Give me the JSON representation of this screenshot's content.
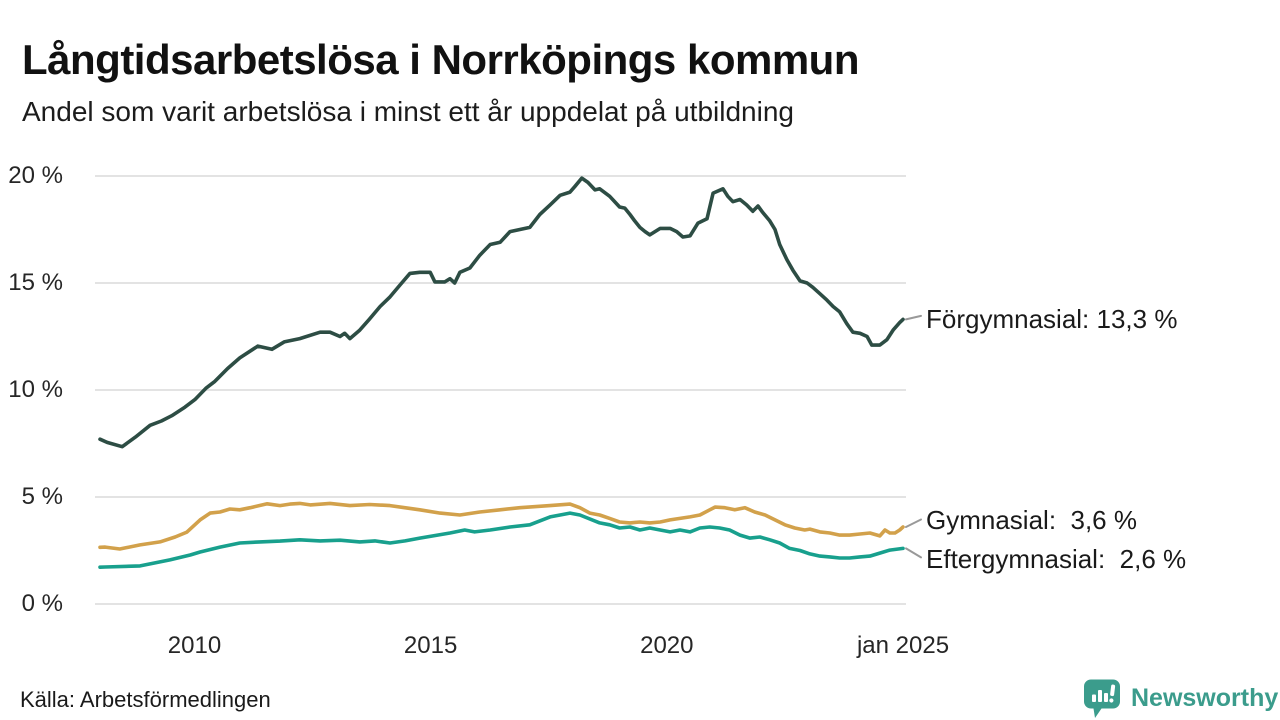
{
  "header": {
    "title": "Långtidsarbetslösa i Norrköpings kommun",
    "subtitle": "Andel som varit arbetslösa i minst ett år uppdelat på utbildning"
  },
  "footer": {
    "source": "Källa: Arbetsförmedlingen",
    "brand": "Newsworthy"
  },
  "colors": {
    "forgymnasial": "#2d4d44",
    "gymnasial": "#d2a14b",
    "eftergymnasial": "#18a08d",
    "grid": "#e3e3e3",
    "connector": "#999999",
    "brand_teal": "#3b9c8c",
    "text": "#1a1a1a"
  },
  "chart_data": {
    "type": "line",
    "title": "Långtidsarbetslösa i Norrköpings kommun",
    "subtitle": "Andel som varit arbetslösa i minst ett år uppdelat på utbildning",
    "xlabel": "",
    "ylabel": "",
    "unit": "%",
    "grid": true,
    "legend_position": "end-labels-right",
    "xlim": [
      2008,
      2025
    ],
    "ylim": [
      0,
      20
    ],
    "y_ticks": [
      {
        "value": 0,
        "label": "0 %"
      },
      {
        "value": 5,
        "label": "5 %"
      },
      {
        "value": 10,
        "label": "10 %"
      },
      {
        "value": 15,
        "label": "15 %"
      },
      {
        "value": 20,
        "label": "20 %"
      }
    ],
    "x_ticks": [
      {
        "value": 2010,
        "label": "2010"
      },
      {
        "value": 2015,
        "label": "2015"
      },
      {
        "value": 2020,
        "label": "2020"
      },
      {
        "value": 2025,
        "label": "jan 2025"
      }
    ],
    "series": [
      {
        "name": "Förgymnasial",
        "color_key": "forgymnasial",
        "end_value": "13,3 %",
        "end_label": "Förgymnasial: 13,3 %",
        "points": [
          [
            2008.0,
            7.7
          ],
          [
            2008.15,
            7.55
          ],
          [
            2008.47,
            7.35
          ],
          [
            2008.75,
            7.8
          ],
          [
            2009.06,
            8.35
          ],
          [
            2009.3,
            8.55
          ],
          [
            2009.52,
            8.8
          ],
          [
            2009.8,
            9.2
          ],
          [
            2010.01,
            9.55
          ],
          [
            2010.25,
            10.1
          ],
          [
            2010.43,
            10.4
          ],
          [
            2010.7,
            11.0
          ],
          [
            2010.96,
            11.5
          ],
          [
            2011.34,
            12.05
          ],
          [
            2011.64,
            11.9
          ],
          [
            2011.9,
            12.25
          ],
          [
            2012.23,
            12.4
          ],
          [
            2012.66,
            12.7
          ],
          [
            2012.87,
            12.7
          ],
          [
            2013.08,
            12.5
          ],
          [
            2013.18,
            12.65
          ],
          [
            2013.29,
            12.4
          ],
          [
            2013.5,
            12.8
          ],
          [
            2013.7,
            13.3
          ],
          [
            2013.93,
            13.9
          ],
          [
            2014.14,
            14.35
          ],
          [
            2014.35,
            14.9
          ],
          [
            2014.56,
            15.45
          ],
          [
            2014.77,
            15.5
          ],
          [
            2014.99,
            15.5
          ],
          [
            2015.09,
            15.05
          ],
          [
            2015.3,
            15.05
          ],
          [
            2015.41,
            15.2
          ],
          [
            2015.51,
            15.0
          ],
          [
            2015.62,
            15.5
          ],
          [
            2015.83,
            15.7
          ],
          [
            2016.04,
            16.3
          ],
          [
            2016.26,
            16.8
          ],
          [
            2016.47,
            16.9
          ],
          [
            2016.68,
            17.4
          ],
          [
            2016.89,
            17.5
          ],
          [
            2017.1,
            17.6
          ],
          [
            2017.31,
            18.2
          ],
          [
            2017.53,
            18.65
          ],
          [
            2017.74,
            19.1
          ],
          [
            2017.95,
            19.25
          ],
          [
            2018.05,
            19.5
          ],
          [
            2018.2,
            19.9
          ],
          [
            2018.33,
            19.7
          ],
          [
            2018.48,
            19.35
          ],
          [
            2018.58,
            19.4
          ],
          [
            2018.79,
            19.05
          ],
          [
            2019.0,
            18.55
          ],
          [
            2019.11,
            18.5
          ],
          [
            2019.22,
            18.2
          ],
          [
            2019.32,
            17.9
          ],
          [
            2019.43,
            17.6
          ],
          [
            2019.54,
            17.4
          ],
          [
            2019.64,
            17.25
          ],
          [
            2019.75,
            17.4
          ],
          [
            2019.86,
            17.55
          ],
          [
            2020.07,
            17.55
          ],
          [
            2020.21,
            17.4
          ],
          [
            2020.34,
            17.15
          ],
          [
            2020.49,
            17.2
          ],
          [
            2020.66,
            17.8
          ],
          [
            2020.85,
            18.0
          ],
          [
            2020.98,
            19.2
          ],
          [
            2021.19,
            19.4
          ],
          [
            2021.29,
            19.05
          ],
          [
            2021.4,
            18.8
          ],
          [
            2021.55,
            18.9
          ],
          [
            2021.69,
            18.65
          ],
          [
            2021.82,
            18.35
          ],
          [
            2021.93,
            18.6
          ],
          [
            2022.03,
            18.3
          ],
          [
            2022.18,
            17.9
          ],
          [
            2022.29,
            17.5
          ],
          [
            2022.39,
            16.8
          ],
          [
            2022.54,
            16.1
          ],
          [
            2022.67,
            15.6
          ],
          [
            2022.82,
            15.1
          ],
          [
            2022.97,
            15.0
          ],
          [
            2023.09,
            14.8
          ],
          [
            2023.24,
            14.5
          ],
          [
            2023.39,
            14.2
          ],
          [
            2023.52,
            13.9
          ],
          [
            2023.66,
            13.65
          ],
          [
            2023.81,
            13.1
          ],
          [
            2023.94,
            12.7
          ],
          [
            2024.09,
            12.65
          ],
          [
            2024.24,
            12.5
          ],
          [
            2024.34,
            12.1
          ],
          [
            2024.51,
            12.1
          ],
          [
            2024.66,
            12.35
          ],
          [
            2024.79,
            12.8
          ],
          [
            2024.93,
            13.15
          ],
          [
            2025.0,
            13.3
          ]
        ]
      },
      {
        "name": "Gymnasial",
        "color_key": "gymnasial",
        "end_value": "3,6 %",
        "end_label": "Gymnasial:  3,6 %",
        "points": [
          [
            2008.0,
            2.65
          ],
          [
            2008.11,
            2.66
          ],
          [
            2008.42,
            2.57
          ],
          [
            2008.85,
            2.76
          ],
          [
            2009.27,
            2.9
          ],
          [
            2009.59,
            3.13
          ],
          [
            2009.84,
            3.36
          ],
          [
            2010.12,
            3.93
          ],
          [
            2010.33,
            4.25
          ],
          [
            2010.54,
            4.3
          ],
          [
            2010.75,
            4.44
          ],
          [
            2010.96,
            4.4
          ],
          [
            2011.18,
            4.5
          ],
          [
            2011.54,
            4.68
          ],
          [
            2011.81,
            4.6
          ],
          [
            2012.02,
            4.67
          ],
          [
            2012.23,
            4.7
          ],
          [
            2012.45,
            4.63
          ],
          [
            2012.87,
            4.7
          ],
          [
            2013.29,
            4.6
          ],
          [
            2013.71,
            4.65
          ],
          [
            2014.14,
            4.6
          ],
          [
            2014.45,
            4.5
          ],
          [
            2014.77,
            4.4
          ],
          [
            2015.2,
            4.25
          ],
          [
            2015.62,
            4.16
          ],
          [
            2016.04,
            4.3
          ],
          [
            2016.47,
            4.4
          ],
          [
            2016.89,
            4.5
          ],
          [
            2017.53,
            4.6
          ],
          [
            2017.95,
            4.67
          ],
          [
            2018.16,
            4.5
          ],
          [
            2018.37,
            4.25
          ],
          [
            2018.58,
            4.16
          ],
          [
            2018.79,
            4.0
          ],
          [
            2019.0,
            3.83
          ],
          [
            2019.22,
            3.79
          ],
          [
            2019.43,
            3.83
          ],
          [
            2019.64,
            3.79
          ],
          [
            2019.86,
            3.83
          ],
          [
            2020.07,
            3.93
          ],
          [
            2020.28,
            4.0
          ],
          [
            2020.49,
            4.07
          ],
          [
            2020.7,
            4.16
          ],
          [
            2020.91,
            4.4
          ],
          [
            2021.02,
            4.53
          ],
          [
            2021.23,
            4.5
          ],
          [
            2021.44,
            4.4
          ],
          [
            2021.65,
            4.5
          ],
          [
            2021.86,
            4.3
          ],
          [
            2022.08,
            4.16
          ],
          [
            2022.29,
            3.93
          ],
          [
            2022.5,
            3.7
          ],
          [
            2022.71,
            3.55
          ],
          [
            2022.92,
            3.46
          ],
          [
            2023.03,
            3.5
          ],
          [
            2023.24,
            3.37
          ],
          [
            2023.45,
            3.32
          ],
          [
            2023.66,
            3.22
          ],
          [
            2023.87,
            3.22
          ],
          [
            2024.09,
            3.27
          ],
          [
            2024.3,
            3.32
          ],
          [
            2024.51,
            3.18
          ],
          [
            2024.62,
            3.46
          ],
          [
            2024.72,
            3.32
          ],
          [
            2024.83,
            3.32
          ],
          [
            2024.93,
            3.46
          ],
          [
            2025.0,
            3.6
          ]
        ]
      },
      {
        "name": "Eftergymnasial",
        "color_key": "eftergymnasial",
        "end_value": "2,6 %",
        "end_label": "Eftergymnasial:  2,6 %",
        "points": [
          [
            2008.0,
            1.72
          ],
          [
            2008.11,
            1.73
          ],
          [
            2008.85,
            1.78
          ],
          [
            2009.48,
            2.06
          ],
          [
            2009.91,
            2.29
          ],
          [
            2010.12,
            2.43
          ],
          [
            2010.54,
            2.66
          ],
          [
            2010.96,
            2.85
          ],
          [
            2011.39,
            2.9
          ],
          [
            2011.81,
            2.94
          ],
          [
            2012.23,
            3.0
          ],
          [
            2012.66,
            2.95
          ],
          [
            2013.08,
            2.98
          ],
          [
            2013.5,
            2.9
          ],
          [
            2013.82,
            2.95
          ],
          [
            2014.14,
            2.85
          ],
          [
            2014.46,
            2.95
          ],
          [
            2014.77,
            3.08
          ],
          [
            2015.41,
            3.32
          ],
          [
            2015.72,
            3.46
          ],
          [
            2015.93,
            3.37
          ],
          [
            2016.26,
            3.46
          ],
          [
            2016.68,
            3.6
          ],
          [
            2017.1,
            3.7
          ],
          [
            2017.53,
            4.07
          ],
          [
            2017.74,
            4.16
          ],
          [
            2017.95,
            4.25
          ],
          [
            2018.16,
            4.16
          ],
          [
            2018.58,
            3.79
          ],
          [
            2018.79,
            3.7
          ],
          [
            2019.0,
            3.55
          ],
          [
            2019.22,
            3.6
          ],
          [
            2019.43,
            3.46
          ],
          [
            2019.64,
            3.55
          ],
          [
            2019.86,
            3.46
          ],
          [
            2020.07,
            3.37
          ],
          [
            2020.28,
            3.46
          ],
          [
            2020.49,
            3.37
          ],
          [
            2020.7,
            3.55
          ],
          [
            2020.91,
            3.6
          ],
          [
            2021.12,
            3.55
          ],
          [
            2021.33,
            3.46
          ],
          [
            2021.55,
            3.22
          ],
          [
            2021.76,
            3.08
          ],
          [
            2021.97,
            3.13
          ],
          [
            2022.18,
            3.0
          ],
          [
            2022.39,
            2.85
          ],
          [
            2022.6,
            2.6
          ],
          [
            2022.82,
            2.5
          ],
          [
            2023.03,
            2.34
          ],
          [
            2023.24,
            2.24
          ],
          [
            2023.45,
            2.2
          ],
          [
            2023.66,
            2.15
          ],
          [
            2023.87,
            2.15
          ],
          [
            2024.09,
            2.2
          ],
          [
            2024.3,
            2.24
          ],
          [
            2024.51,
            2.38
          ],
          [
            2024.72,
            2.52
          ],
          [
            2025.0,
            2.6
          ]
        ]
      }
    ]
  }
}
